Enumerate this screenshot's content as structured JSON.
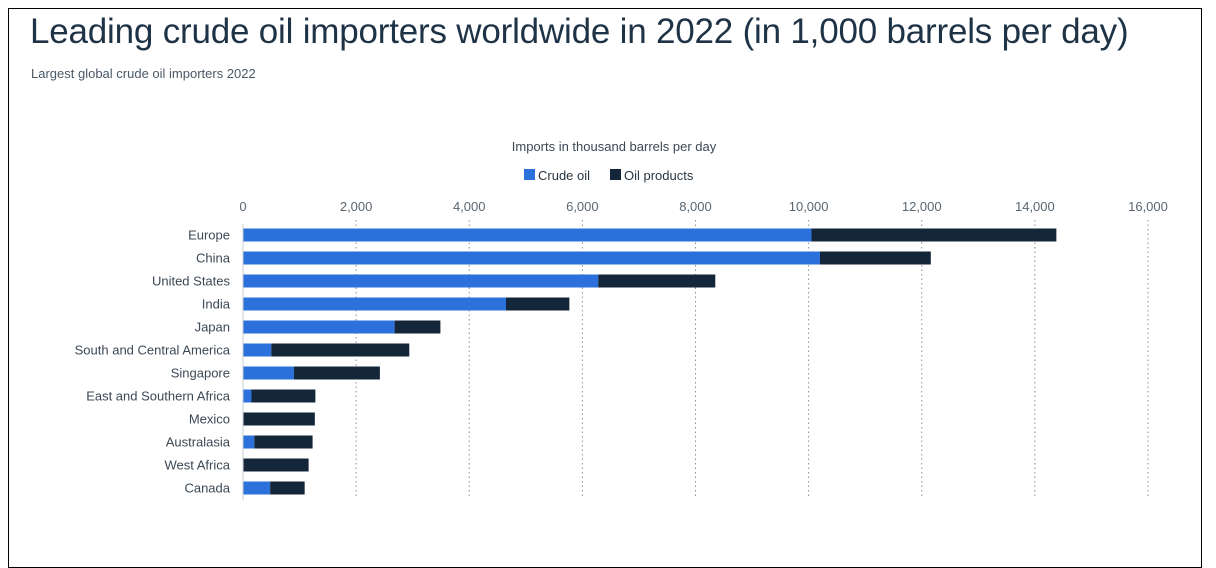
{
  "title": "Leading crude oil importers worldwide in 2022 (in 1,000 barrels per day)",
  "subtitle": "Largest global crude oil importers 2022",
  "colors": {
    "crude_oil": "#2b70db",
    "oil_products": "#14263a",
    "title": "#1f3346",
    "grid": "#8a9199"
  },
  "chart_data": {
    "type": "bar",
    "orientation": "horizontal",
    "stacked": true,
    "xlabel": "Imports in thousand barrels per day",
    "ylabel": "",
    "xlim": [
      0,
      16000
    ],
    "x_ticks": [
      0,
      2000,
      4000,
      6000,
      8000,
      10000,
      12000,
      14000,
      16000
    ],
    "x_tick_labels": [
      "0",
      "2,000",
      "4,000",
      "6,000",
      "8,000",
      "10,000",
      "12,000",
      "14,000",
      "16,000"
    ],
    "grid": "vertical dotted",
    "legend_position": "top-center",
    "categories": [
      "Europe",
      "China",
      "United States",
      "India",
      "Japan",
      "South and Central America",
      "Singapore",
      "East and Southern Africa",
      "Mexico",
      "Australasia",
      "West Africa",
      "Canada"
    ],
    "series": [
      {
        "name": "Crude oil",
        "values": [
          10050,
          10200,
          6280,
          4650,
          2680,
          500,
          900,
          150,
          10,
          200,
          10,
          480
        ]
      },
      {
        "name": "Oil products",
        "values": [
          4330,
          1960,
          2070,
          1120,
          810,
          2440,
          1520,
          1130,
          1260,
          1030,
          1150,
          610
        ]
      }
    ]
  }
}
